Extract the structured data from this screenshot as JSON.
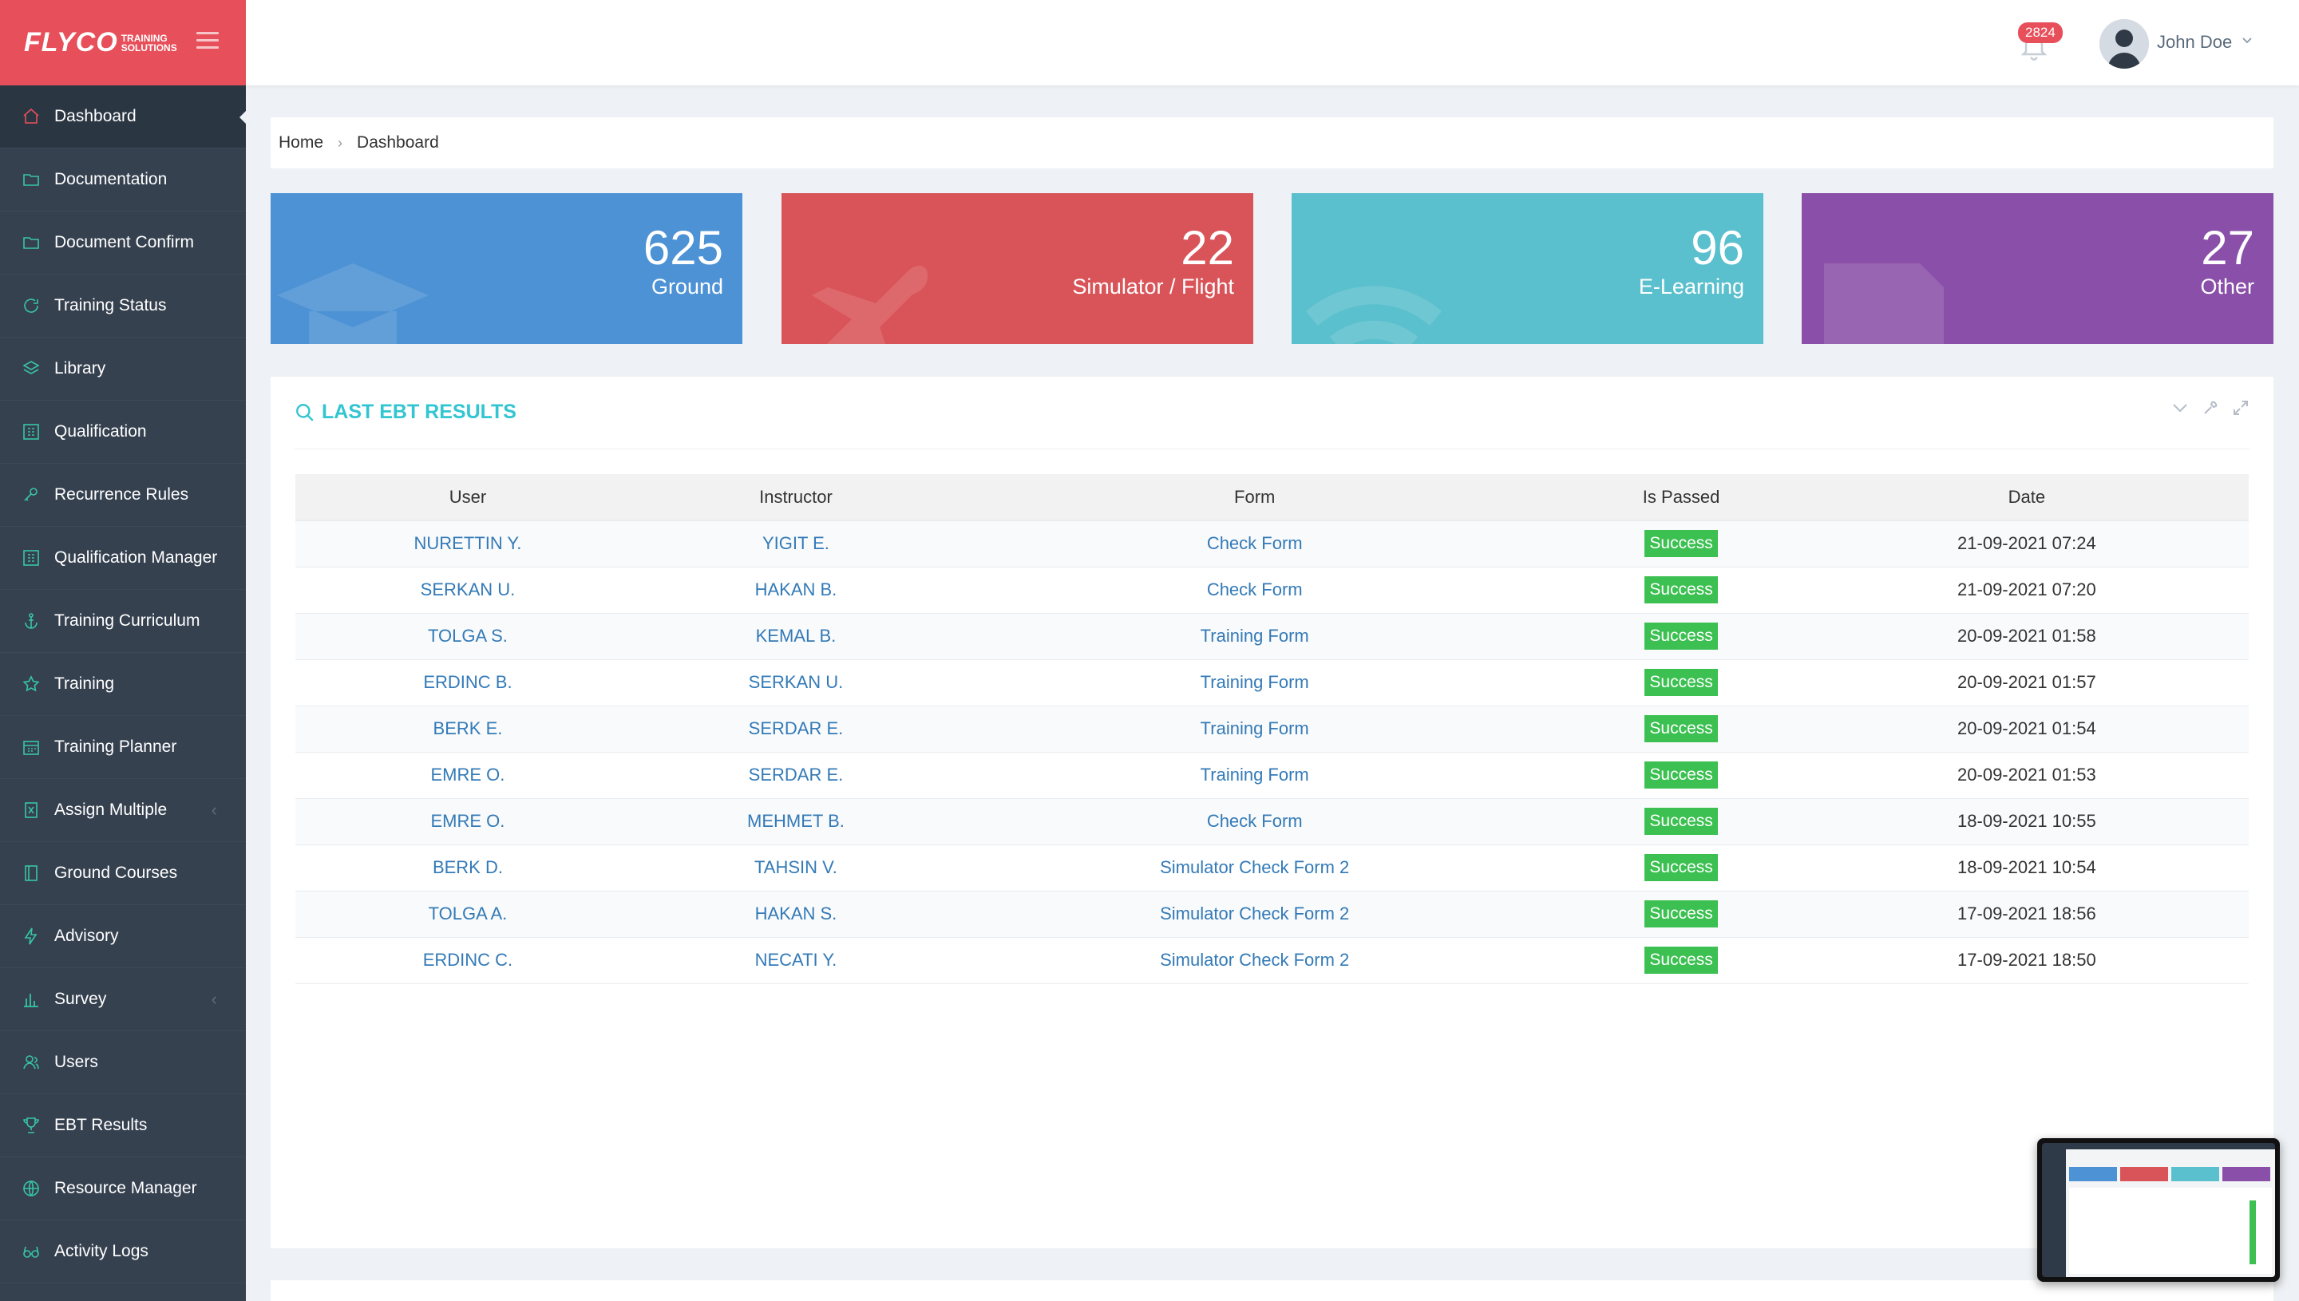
{
  "brand": {
    "logo_text": "FLYCO",
    "logo_sub_line1": "TRAINING",
    "logo_sub_line2": "SOLUTIONS",
    "color": "#e7505a"
  },
  "sidebar": {
    "items": [
      {
        "label": "Dashboard",
        "icon": "home-icon",
        "active": true
      },
      {
        "label": "Documentation",
        "icon": "folder-icon"
      },
      {
        "label": "Document Confirm",
        "icon": "folder-icon"
      },
      {
        "label": "Training Status",
        "icon": "refresh-icon"
      },
      {
        "label": "Library",
        "icon": "layers-icon"
      },
      {
        "label": "Qualification",
        "icon": "grid-icon"
      },
      {
        "label": "Recurrence Rules",
        "icon": "key-icon"
      },
      {
        "label": "Qualification Manager",
        "icon": "grid-icon"
      },
      {
        "label": "Training Curriculum",
        "icon": "anchor-icon"
      },
      {
        "label": "Training",
        "icon": "star-icon"
      },
      {
        "label": "Training Planner",
        "icon": "calendar-icon"
      },
      {
        "label": "Assign Multiple",
        "icon": "excel-icon",
        "has_arrow": true
      },
      {
        "label": "Ground Courses",
        "icon": "book-icon"
      },
      {
        "label": "Advisory",
        "icon": "bolt-icon"
      },
      {
        "label": "Survey",
        "icon": "bar-chart-icon",
        "has_arrow": true
      },
      {
        "label": "Users",
        "icon": "user-icon"
      },
      {
        "label": "EBT Results",
        "icon": "trophy-icon"
      },
      {
        "label": "Resource Manager",
        "icon": "globe-icon"
      },
      {
        "label": "Activity Logs",
        "icon": "eyeglasses-icon"
      }
    ]
  },
  "header": {
    "notification_count": "2824",
    "user_name": "John Doe"
  },
  "breadcrumb": {
    "home": "Home",
    "current": "Dashboard"
  },
  "tiles": [
    {
      "value": "625",
      "label": "Ground",
      "color": "#4c92d4",
      "icon": "graduation-cap-icon"
    },
    {
      "value": "22",
      "label": "Simulator / Flight",
      "color": "#d95459",
      "icon": "plane-icon"
    },
    {
      "value": "96",
      "label": "E-Learning",
      "color": "#5bc0cd",
      "icon": "wifi-icon"
    },
    {
      "value": "27",
      "label": "Other",
      "color": "#8a4fa8",
      "icon": "document-icon"
    }
  ],
  "portlet": {
    "title": "LAST EBT RESULTS",
    "columns": [
      "User",
      "Instructor",
      "Form",
      "Is Passed",
      "Date"
    ],
    "rows": [
      {
        "user": "NURETTIN Y.",
        "instructor": "YIGIT E.",
        "form": "Check Form",
        "passed": "Success",
        "date": "21-09-2021 07:24"
      },
      {
        "user": "SERKAN U.",
        "instructor": "HAKAN B.",
        "form": "Check Form",
        "passed": "Success",
        "date": "21-09-2021 07:20"
      },
      {
        "user": "TOLGA S.",
        "instructor": "KEMAL B.",
        "form": "Training Form",
        "passed": "Success",
        "date": "20-09-2021 01:58"
      },
      {
        "user": "ERDINC B.",
        "instructor": "SERKAN U.",
        "form": "Training Form",
        "passed": "Success",
        "date": "20-09-2021 01:57"
      },
      {
        "user": "BERK E.",
        "instructor": "SERDAR E.",
        "form": "Training Form",
        "passed": "Success",
        "date": "20-09-2021 01:54"
      },
      {
        "user": "EMRE O.",
        "instructor": "SERDAR E.",
        "form": "Training Form",
        "passed": "Success",
        "date": "20-09-2021 01:53"
      },
      {
        "user": "EMRE O.",
        "instructor": "MEHMET B.",
        "form": "Check Form",
        "passed": "Success",
        "date": "18-09-2021 10:55"
      },
      {
        "user": "BERK D.",
        "instructor": "TAHSIN V.",
        "form": "Simulator Check Form 2",
        "passed": "Success",
        "date": "18-09-2021 10:54"
      },
      {
        "user": "TOLGA A.",
        "instructor": "HAKAN S.",
        "form": "Simulator Check Form 2",
        "passed": "Success",
        "date": "17-09-2021 18:56"
      },
      {
        "user": "ERDINC C.",
        "instructor": "NECATI Y.",
        "form": "Simulator Check Form 2",
        "passed": "Success",
        "date": "17-09-2021 18:50"
      }
    ]
  }
}
